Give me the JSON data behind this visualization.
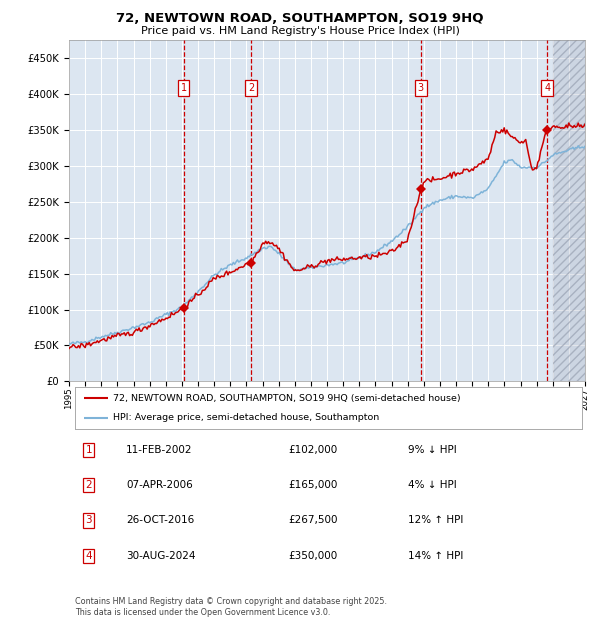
{
  "title": "72, NEWTOWN ROAD, SOUTHAMPTON, SO19 9HQ",
  "subtitle": "Price paid vs. HM Land Registry's House Price Index (HPI)",
  "bg_color": "#dce6f1",
  "grid_color": "#ffffff",
  "hpi_line_color": "#7eb3d8",
  "price_line_color": "#cc0000",
  "marker_color": "#cc0000",
  "vline_color": "#cc0000",
  "transactions": [
    {
      "num": 1,
      "date_label": "11-FEB-2002",
      "date_x": 2002.11,
      "price": 102000,
      "pct": "9%",
      "dir": "↓"
    },
    {
      "num": 2,
      "date_label": "07-APR-2006",
      "date_x": 2006.28,
      "price": 165000,
      "pct": "4%",
      "dir": "↓"
    },
    {
      "num": 3,
      "date_label": "26-OCT-2016",
      "date_x": 2016.82,
      "price": 267500,
      "pct": "12%",
      "dir": "↑"
    },
    {
      "num": 4,
      "date_label": "30-AUG-2024",
      "date_x": 2024.66,
      "price": 350000,
      "pct": "14%",
      "dir": "↑"
    }
  ],
  "ylim": [
    0,
    475000
  ],
  "xlim": [
    1995,
    2027
  ],
  "ylabel_ticks": [
    0,
    50000,
    100000,
    150000,
    200000,
    250000,
    300000,
    350000,
    400000,
    450000
  ],
  "xtick_years": [
    1995,
    1996,
    1997,
    1998,
    1999,
    2000,
    2001,
    2002,
    2003,
    2004,
    2005,
    2006,
    2007,
    2008,
    2009,
    2010,
    2011,
    2012,
    2013,
    2014,
    2015,
    2016,
    2017,
    2018,
    2019,
    2020,
    2021,
    2022,
    2023,
    2024,
    2025,
    2026,
    2027
  ],
  "legend_label_red": "72, NEWTOWN ROAD, SOUTHAMPTON, SO19 9HQ (semi-detached house)",
  "legend_label_blue": "HPI: Average price, semi-detached house, Southampton",
  "footnote": "Contains HM Land Registry data © Crown copyright and database right 2025.\nThis data is licensed under the Open Government Licence v3.0.",
  "future_x": 2025.0
}
